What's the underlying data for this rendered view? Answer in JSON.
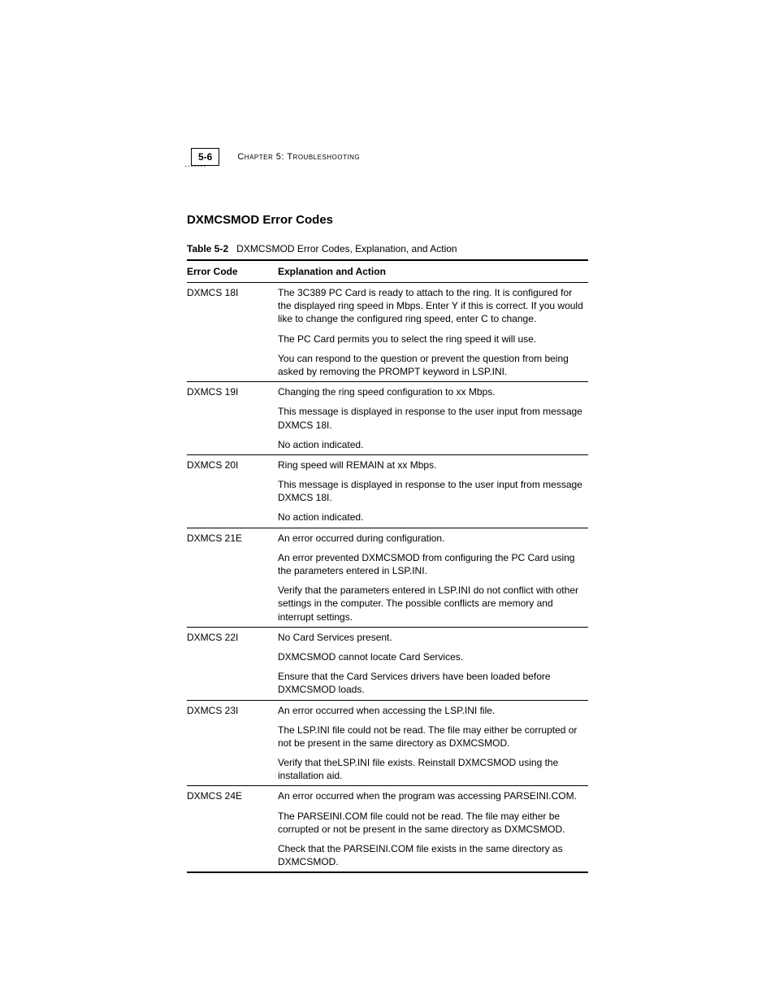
{
  "page": {
    "number": "5-6",
    "chapter_text": "Chapter 5: Troubleshooting",
    "dots_decoration": "·······"
  },
  "section": {
    "title": "DXMCSMOD Error Codes",
    "table_label": "Table 5-2",
    "table_caption": "DXMCSMOD Error Codes, Explanation, and Action"
  },
  "table": {
    "headers": {
      "col1": "Error Code",
      "col2": "Explanation and Action"
    },
    "rows": [
      {
        "code": "DXMCS 18I",
        "paras": [
          {
            "text": "The 3C389 PC Card is ready to attach to the ring. It is configured for the displayed ring speed in Mbps. Enter Y if this is correct. If you would like to change the configured ring speed, enter C to change.",
            "indent": false
          },
          {
            "text": "The PC Card permits you to select the ring speed it will use.",
            "indent": false
          },
          {
            "text": "You can respond to the question or prevent the question from being asked by removing the PROMPT keyword in LSP.INI.",
            "indent": false
          }
        ]
      },
      {
        "code": "DXMCS 19I",
        "paras": [
          {
            "text": "Changing the ring speed configuration to xx Mbps.",
            "indent": false
          },
          {
            "text": "This message is displayed in response to the user input from message DXMCS 18I.",
            "indent": false
          },
          {
            "text": "No action indicated.",
            "indent": false
          }
        ]
      },
      {
        "code": "DXMCS 20I",
        "paras": [
          {
            "text": "Ring speed will REMAIN at xx Mbps.",
            "indent": false
          },
          {
            "text": "This message is displayed in response to the user input from message DXMCS 18I.",
            "indent": false
          },
          {
            "text": "No action indicated.",
            "indent": false
          }
        ]
      },
      {
        "code": "DXMCS 21E",
        "paras": [
          {
            "text": "An error occurred during configuration.",
            "indent": false
          },
          {
            "text": "An error prevented DXMCSMOD from configuring the PC Card using the parameters entered in LSP.INI.",
            "indent": false
          },
          {
            "text": "Verify that the parameters entered in LSP.INI do not conflict with other settings in the computer. The possible conflicts are memory and interrupt settings.",
            "indent": false
          }
        ]
      },
      {
        "code": "DXMCS 22I",
        "paras": [
          {
            "text": "No Card Services present.",
            "indent": false
          },
          {
            "text": "DXMCSMOD cannot locate Card Services.",
            "indent": false
          },
          {
            "text": "Ensure that the Card Services drivers have been loaded before DXMCSMOD loads.",
            "indent": false
          }
        ]
      },
      {
        "code": "DXMCS 23I",
        "paras": [
          {
            "text": "An error occurred when accessing the LSP.INI file.",
            "indent": false
          },
          {
            "text": "The LSP.INI file could not be read. The file may either be corrupted or not be present in the same directory as DXMCSMOD.",
            "indent": true
          },
          {
            "text": "Verify that theLSP.INI file exists. Reinstall DXMCSMOD using the installation aid.",
            "indent": true
          }
        ]
      },
      {
        "code": "DXMCS 24E",
        "paras": [
          {
            "text": "An error occurred when the program was accessing PARSEINI.COM.",
            "indent": false
          },
          {
            "text": "The PARSEINI.COM file could not be read. The file may either be corrupted or not be present in the same directory as DXMCSMOD.",
            "indent": true
          },
          {
            "text": "Check that the PARSEINI.COM file exists in the same directory as DXMCSMOD.",
            "indent": true
          }
        ]
      }
    ]
  }
}
